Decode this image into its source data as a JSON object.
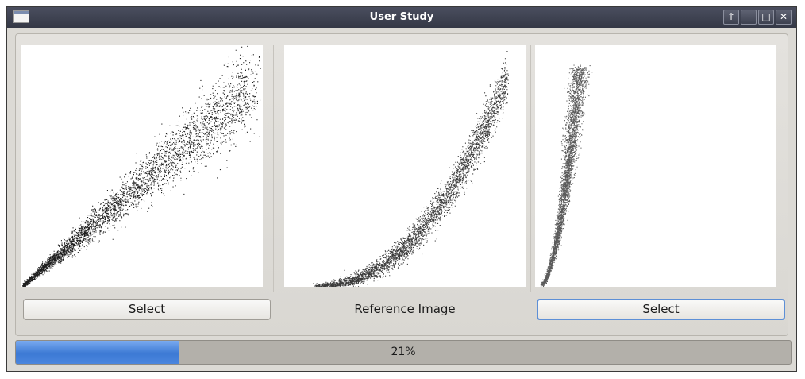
{
  "window": {
    "title": "User Study",
    "controls": {
      "shade": "↑",
      "minimize": "–",
      "maximize": "□",
      "close": "✕"
    }
  },
  "left_option": {
    "select_label": "Select"
  },
  "reference": {
    "label": "Reference Image"
  },
  "right_option": {
    "select_label": "Select",
    "focused": true
  },
  "progress": {
    "value": 0.21,
    "label": "21%"
  },
  "colors": {
    "titlebar": "#3a3e4d",
    "window_bg": "#dcdad5",
    "progress_fill": "#4a86de",
    "focus_border": "#5d8fd6"
  },
  "icons": [
    "app-window-icon",
    "shade-icon",
    "minimize-icon",
    "maximize-icon",
    "close-icon"
  ]
}
